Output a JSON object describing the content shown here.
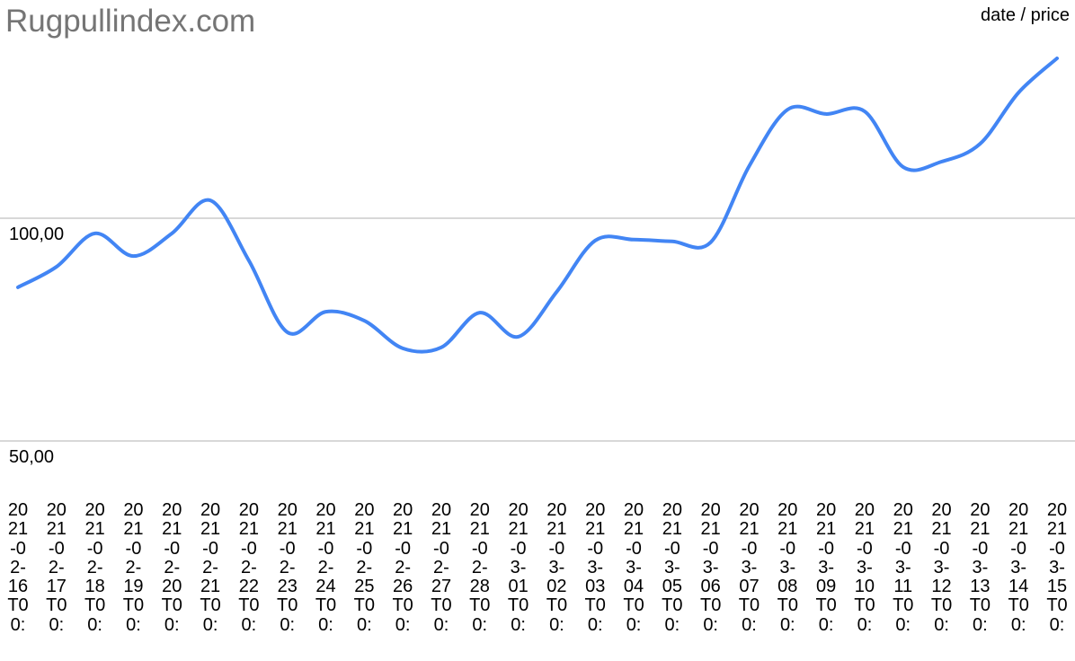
{
  "chart_data": {
    "type": "line",
    "title": "Rugpullindex.com",
    "legend_label": "date / price",
    "categories": [
      "2021-02-16T00:",
      "2021-02-17T00:",
      "2021-02-18T00:",
      "2021-02-19T00:",
      "2021-02-20T00:",
      "2021-02-21T00:",
      "2021-02-22T00:",
      "2021-02-23T00:",
      "2021-02-24T00:",
      "2021-02-25T00:",
      "2021-02-26T00:",
      "2021-02-27T00:",
      "2021-02-28T00:",
      "2021-03-01T00:",
      "2021-03-02T00:",
      "2021-03-03T00:",
      "2021-03-04T00:",
      "2021-03-05T00:",
      "2021-03-06T00:",
      "2021-03-07T00:",
      "2021-03-08T00:",
      "2021-03-09T00:",
      "2021-03-10T00:",
      "2021-03-11T00:",
      "2021-03-12T00:",
      "2021-03-13T00:",
      "2021-03-14T00:",
      "2021-03-15T00:"
    ],
    "series": [
      {
        "name": "price",
        "color": "#4285f4",
        "values": [
          84.5,
          89.1,
          96.6,
          91.5,
          96.6,
          104.0,
          90.5,
          74.4,
          79.0,
          77.0,
          70.8,
          71.0,
          78.8,
          73.4,
          83.5,
          95.0,
          95.2,
          94.8,
          94.6,
          111.7,
          124.4,
          123.4,
          124.0,
          111.5,
          112.7,
          116.7,
          128.2,
          135.9
        ]
      }
    ],
    "ylim": [
      50,
      140
    ],
    "yticks": [
      {
        "value": 50,
        "label": "50,00"
      },
      {
        "value": 100,
        "label": "100,00"
      }
    ],
    "grid": true
  }
}
